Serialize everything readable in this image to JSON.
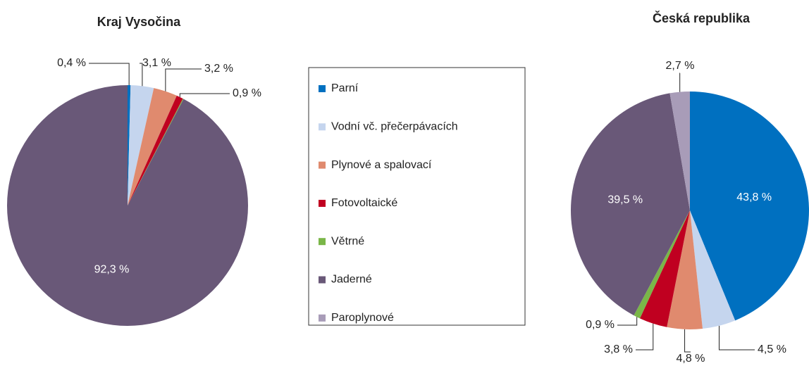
{
  "chart_data": [
    {
      "type": "pie",
      "title": "Kraj Vysočina",
      "categories": [
        "Parní",
        "Vodní vč. přečerpávacích",
        "Plynové a spalovací",
        "Fotovoltaické",
        "Větrné",
        "Jaderné",
        "Paroplynové"
      ],
      "values": [
        0.4,
        3.1,
        3.2,
        0.9,
        0.1,
        92.3,
        0
      ],
      "value_labels": [
        "0,4 %",
        "3,1 %",
        "3,2 %",
        "0,9 %",
        null,
        "92,3 %",
        null
      ],
      "colors": [
        "#0070c0",
        "#c5d5ee",
        "#e08a6e",
        "#c00020",
        "#7ab648",
        "#695878",
        "#a89cb8"
      ]
    },
    {
      "type": "pie",
      "title": "Česká republika",
      "categories": [
        "Parní",
        "Vodní vč. přečerpávacích",
        "Plynové a spalovací",
        "Fotovoltaické",
        "Větrné",
        "Jaderné",
        "Paroplynové"
      ],
      "values": [
        43.8,
        4.5,
        4.8,
        3.8,
        0.9,
        39.5,
        2.7
      ],
      "value_labels": [
        "43,8 %",
        "4,5 %",
        "4,8 %",
        "3,8 %",
        "0,9 %",
        "39,5 %",
        "2,7 %"
      ],
      "colors": [
        "#0070c0",
        "#c5d5ee",
        "#e08a6e",
        "#c00020",
        "#7ab648",
        "#695878",
        "#a89cb8"
      ]
    }
  ]
}
